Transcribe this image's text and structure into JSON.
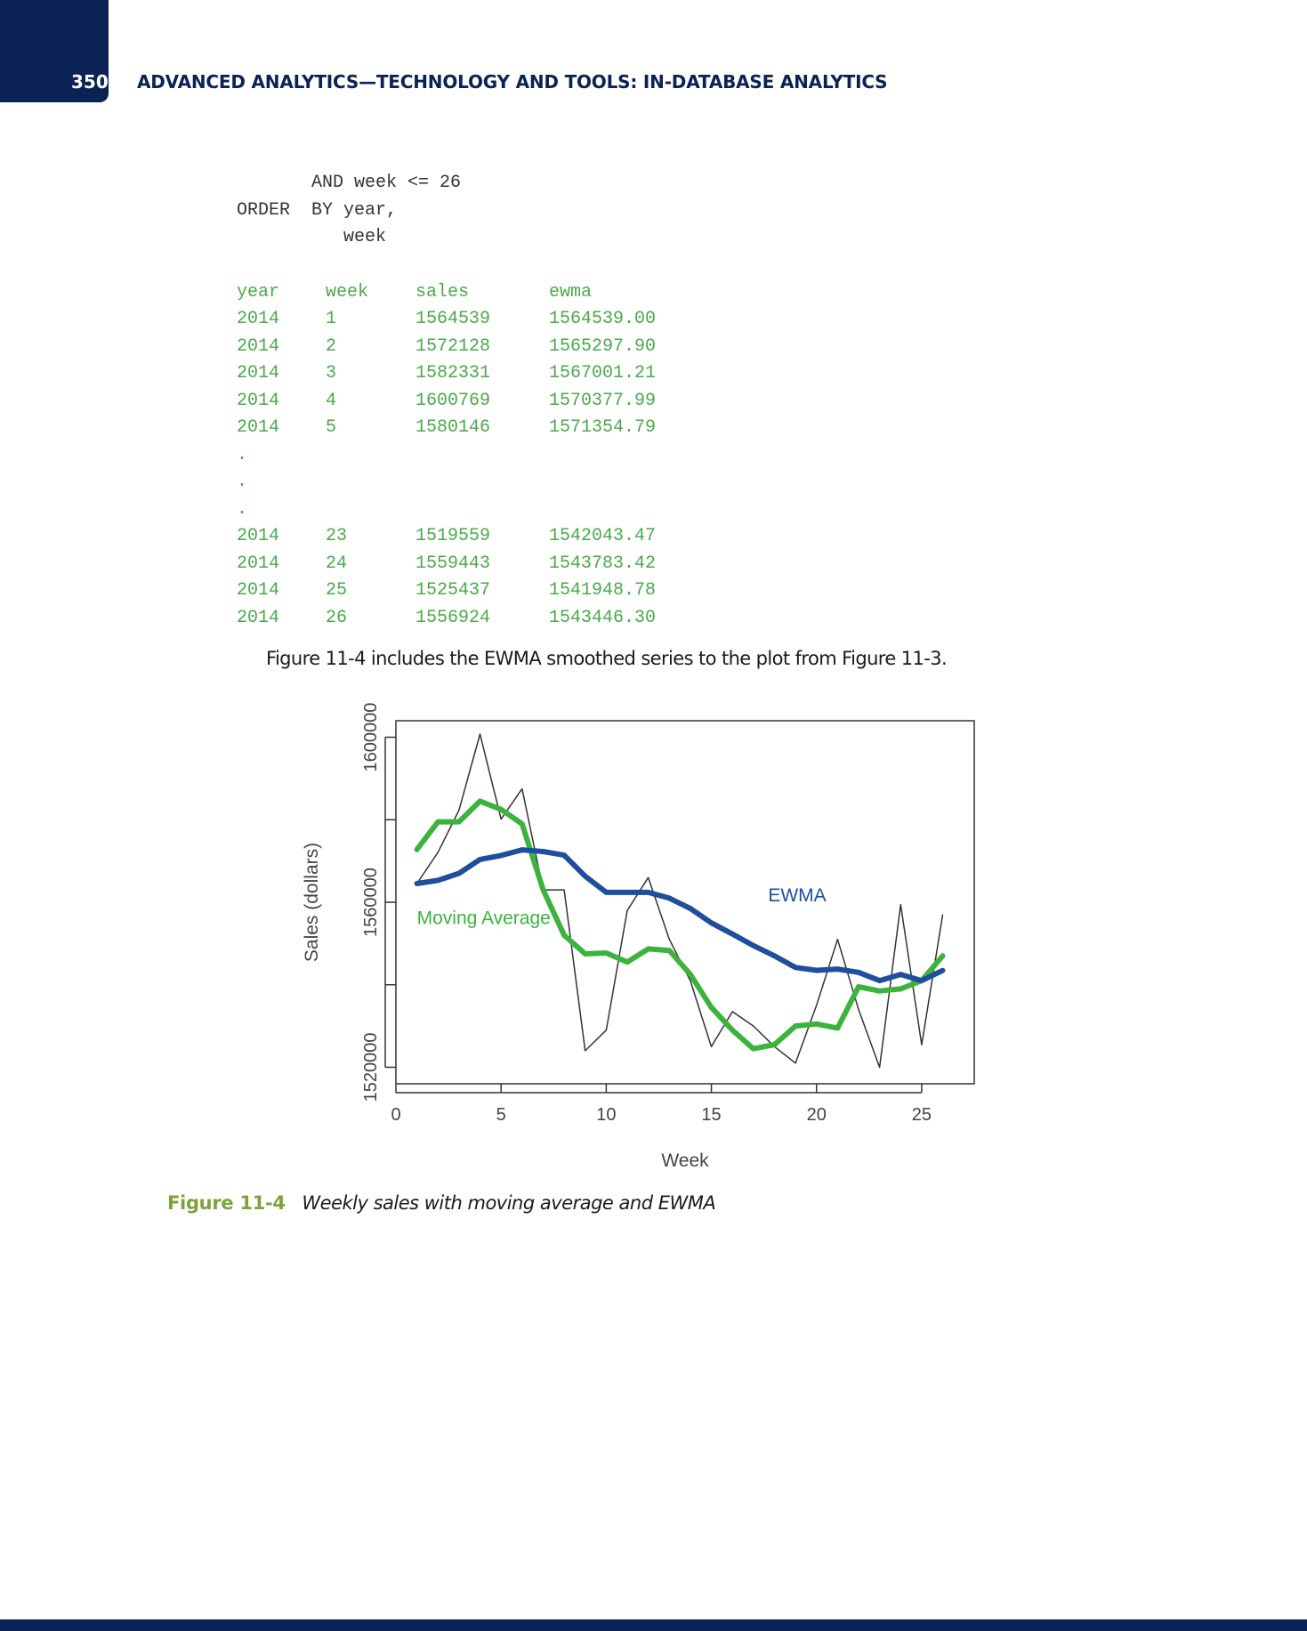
{
  "header": {
    "page_number": "350",
    "running_head": "ADVANCED ANALYTICS—TECHNOLOGY AND TOOLS: IN-DATABASE ANALYTICS"
  },
  "code": {
    "lines": [
      "       AND week <= 26",
      "ORDER  BY year,",
      "          week"
    ]
  },
  "results": {
    "columns": [
      "year",
      "week",
      "sales",
      "ewma"
    ],
    "rows_head": [
      [
        "2014",
        "1",
        "1564539",
        "1564539.00"
      ],
      [
        "2014",
        "2",
        "1572128",
        "1565297.90"
      ],
      [
        "2014",
        "3",
        "1582331",
        "1567001.21"
      ],
      [
        "2014",
        "4",
        "1600769",
        "1570377.99"
      ],
      [
        "2014",
        "5",
        "1580146",
        "1571354.79"
      ]
    ],
    "ellipsis": ".",
    "rows_tail": [
      [
        "2014",
        "23",
        "1519559",
        "1542043.47"
      ],
      [
        "2014",
        "24",
        "1559443",
        "1543783.42"
      ],
      [
        "2014",
        "25",
        "1525437",
        "1541948.78"
      ],
      [
        "2014",
        "26",
        "1556924",
        "1543446.30"
      ]
    ]
  },
  "body_text": "Figure 11-4 includes the EWMA smoothed series to the plot from Figure 11-3.",
  "figure": {
    "label": "Figure 11-4",
    "title": "Weekly sales with moving average and EWMA"
  },
  "chart_data": {
    "type": "line",
    "xlabel": "Week",
    "ylabel": "Sales (dollars)",
    "xlim": [
      0,
      27.5
    ],
    "ylim": [
      1516000,
      1604000
    ],
    "xticks": [
      0,
      5,
      10,
      15,
      20,
      25
    ],
    "yticks": [
      1520000,
      1540000,
      1560000,
      1580000,
      1600000
    ],
    "ytick_labels": [
      "1520000",
      "",
      "1560000",
      "",
      "1600000"
    ],
    "grid": false,
    "annotations": [
      "EWMA",
      "Moving Average"
    ],
    "colors": {
      "sales": "#333333",
      "moving_average": "#3cb33c",
      "ewma": "#1f4e9e"
    },
    "x": [
      1,
      2,
      3,
      4,
      5,
      6,
      7,
      8,
      9,
      10,
      11,
      12,
      13,
      14,
      15,
      16,
      17,
      18,
      19,
      20,
      21,
      22,
      23,
      24,
      25,
      26
    ],
    "series": [
      {
        "key": "sales",
        "values": [
          1564539,
          1572128,
          1582331,
          1600769,
          1580146,
          1587500,
          1563000,
          1563000,
          1524000,
          1529000,
          1558000,
          1566000,
          1551000,
          1541000,
          1525000,
          1533500,
          1530000,
          1525000,
          1521000,
          1535000,
          1551000,
          1534000,
          1520000,
          1559443,
          1525437,
          1556924
        ]
      },
      {
        "key": "moving_average",
        "values": [
          1572800,
          1579500,
          1579500,
          1584500,
          1582500,
          1579000,
          1563000,
          1552000,
          1547500,
          1547700,
          1545500,
          1548700,
          1548300,
          1542500,
          1534500,
          1529000,
          1524500,
          1525500,
          1530000,
          1530500,
          1529500,
          1539500,
          1538500,
          1539000,
          1541000,
          1547000
        ]
      },
      {
        "key": "ewma",
        "values": [
          1564539,
          1565297.9,
          1567001.21,
          1570377.99,
          1571354.79,
          1572700,
          1572300,
          1571400,
          1566300,
          1562400,
          1562400,
          1562400,
          1561000,
          1558500,
          1555000,
          1552300,
          1549500,
          1547000,
          1544200,
          1543500,
          1543800,
          1543000,
          1541000,
          1542500,
          1541000,
          1543446.3
        ]
      }
    ]
  }
}
